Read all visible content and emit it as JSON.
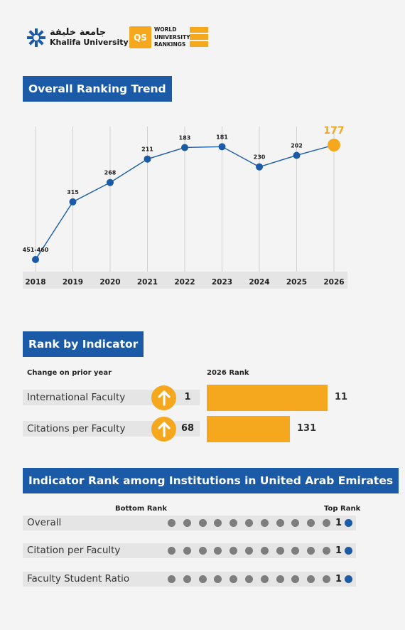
{
  "header": {
    "university_arabic": "جامعة خليفة",
    "university_name": "Khalifa University",
    "qs_badge": "QS",
    "qs_line1": "WORLD",
    "qs_line2": "UNIVERSITY",
    "qs_line3": "RANKINGS"
  },
  "trend": {
    "heading": "Overall Ranking Trend"
  },
  "chart_data": {
    "type": "line",
    "title": "Overall Ranking Trend",
    "xlabel": "",
    "ylabel": "",
    "categories": [
      "2018",
      "2019",
      "2020",
      "2021",
      "2022",
      "2023",
      "2024",
      "2025",
      "2026"
    ],
    "values": [
      455,
      315,
      268,
      211,
      183,
      181,
      230,
      202,
      177
    ],
    "labels": [
      "451-460",
      "315",
      "268",
      "211",
      "183",
      "181",
      "230",
      "202",
      "177"
    ],
    "y_inverted": true,
    "highlight_last": true,
    "colors": {
      "line": "#1b5aa6",
      "point": "#1b5aa6",
      "highlight": "#f5a81d",
      "grid": "#d2d2d2"
    }
  },
  "indicator": {
    "heading": "Rank by Indicator",
    "change_header": "Change on prior year",
    "rank_header": "2026 Rank",
    "max_rank_scale": 131,
    "rows": [
      {
        "label": "International Faculty",
        "change": "1",
        "direction": "up",
        "rank": 11
      },
      {
        "label": "Citations per Faculty",
        "change": "68",
        "direction": "up",
        "rank": 131
      }
    ]
  },
  "uae": {
    "heading": "Indicator Rank among Institutions in United Arab Emirates",
    "bottom_label": "Bottom Rank",
    "top_label": "Top Rank",
    "dot_count": 12,
    "rows": [
      {
        "label": "Overall",
        "rank": "1"
      },
      {
        "label": "Citation per Faculty",
        "rank": "1"
      },
      {
        "label": "Faculty Student Ratio",
        "rank": "1"
      }
    ],
    "colors": {
      "dot": "#7d7d7d",
      "active": "#1b5aa6"
    }
  }
}
